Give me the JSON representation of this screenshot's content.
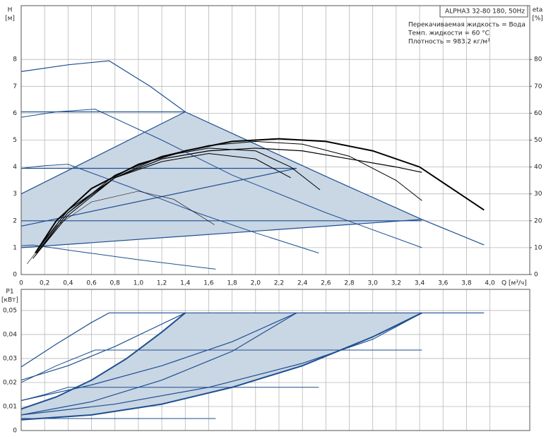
{
  "chart_data": [
    {
      "type": "line",
      "y_label": "H",
      "y_unit": "[м]",
      "y2_label": "eta",
      "y2_unit": "[%]",
      "x_label": "Q [м³/ч]",
      "annotations": [
        "ALPHA3 32-80 180, 50Hz",
        "Перекачиваемая жидкость = Вода",
        "Темп. жидкости = 60 °C",
        "Плотность = 983.2 кг/м³"
      ],
      "xlim": [
        0,
        4.34
      ],
      "ylim": [
        0,
        10
      ],
      "y2lim": [
        0,
        100
      ],
      "grid": true,
      "xticks": [
        {
          "value": 0,
          "label": "0"
        },
        {
          "value": 0.2,
          "label": "0,2"
        },
        {
          "value": 0.4,
          "label": "0,4"
        },
        {
          "value": 0.6,
          "label": "0,6"
        },
        {
          "value": 0.8,
          "label": "0,8"
        },
        {
          "value": 1.0,
          "label": "1,0"
        },
        {
          "value": 1.2,
          "label": "1,2"
        },
        {
          "value": 1.4,
          "label": "1,4"
        },
        {
          "value": 1.6,
          "label": "1,6"
        },
        {
          "value": 1.8,
          "label": "1,8"
        },
        {
          "value": 2.0,
          "label": "2,0"
        },
        {
          "value": 2.2,
          "label": "2,2"
        },
        {
          "value": 2.4,
          "label": "2,4"
        },
        {
          "value": 2.6,
          "label": "2,6"
        },
        {
          "value": 2.8,
          "label": "2,8"
        },
        {
          "value": 3.0,
          "label": "3,0"
        },
        {
          "value": 3.2,
          "label": "3,2"
        },
        {
          "value": 3.4,
          "label": "3,4"
        },
        {
          "value": 3.6,
          "label": "3,6"
        },
        {
          "value": 3.8,
          "label": "3,8"
        },
        {
          "value": 4.0,
          "label": "4,0"
        }
      ],
      "yticks": [
        0,
        1,
        2,
        3,
        4,
        5,
        6,
        7,
        8
      ],
      "y2ticks": [
        0,
        10,
        20,
        30,
        40,
        50,
        60,
        70,
        80
      ],
      "series": [
        {
          "fill": "#c9d6e4",
          "x": [
            0,
            0,
            1.4,
            2.0,
            2.6,
            3.42,
            0
          ],
          "values": [
            1.0,
            3.0,
            6.05,
            4.85,
            3.65,
            2.05,
            1.0
          ]
        },
        {
          "color": "#1d4f91",
          "width": 1.2,
          "x": [
            0,
            0.4,
            0.75,
            1.1,
            1.4,
            2.0,
            2.6,
            3.42,
            3.95
          ],
          "values": [
            7.55,
            7.8,
            7.95,
            7.0,
            6.05,
            4.85,
            3.65,
            2.05,
            1.1
          ]
        },
        {
          "color": "#1d4f91",
          "width": 1,
          "x": [
            0,
            0.3,
            0.63,
            1.2,
            1.8,
            2.6,
            3.42
          ],
          "values": [
            5.85,
            6.05,
            6.15,
            5.0,
            3.7,
            2.3,
            1.0
          ]
        },
        {
          "color": "#1d4f91",
          "width": 1,
          "x": [
            0,
            0.2,
            0.4,
            0.9,
            1.5,
            2.0,
            2.54
          ],
          "values": [
            3.95,
            4.05,
            4.1,
            3.3,
            2.3,
            1.55,
            0.8
          ]
        },
        {
          "color": "#1d4f91",
          "width": 1,
          "x": [
            0,
            0.1,
            0.5,
            1.0,
            1.66
          ],
          "values": [
            1.07,
            1.1,
            0.85,
            0.55,
            0.2
          ]
        },
        {
          "color": "#1d4f91",
          "width": 1.2,
          "x": [
            0,
            1.4
          ],
          "values": [
            6.05,
            6.05
          ]
        },
        {
          "color": "#1d4f91",
          "width": 1.2,
          "x": [
            0,
            2.35
          ],
          "values": [
            3.95,
            3.95
          ]
        },
        {
          "color": "#1d4f91",
          "width": 1.2,
          "x": [
            0,
            3.42
          ],
          "values": [
            2.0,
            2.0
          ]
        },
        {
          "color": "#1d4f91",
          "width": 1.2,
          "x": [
            0,
            1.4
          ],
          "values": [
            3.0,
            6.05
          ]
        },
        {
          "color": "#1d4f91",
          "width": 1.2,
          "x": [
            0,
            2.35
          ],
          "values": [
            1.8,
            3.95
          ]
        },
        {
          "color": "#1d4f91",
          "width": 1.2,
          "x": [
            0,
            3.42
          ],
          "values": [
            1.0,
            2.05
          ]
        },
        {
          "color": "#000000",
          "width": 2,
          "axis": "y2",
          "x": [
            0.12,
            0.3,
            0.6,
            1.0,
            1.4,
            1.8,
            2.2,
            2.6,
            3.0,
            3.4,
            3.95
          ],
          "values": [
            8,
            20,
            32,
            41,
            46,
            49.5,
            50.5,
            49.5,
            46,
            40,
            24
          ]
        },
        {
          "color": "#000000",
          "width": 1.2,
          "axis": "y2",
          "x": [
            0.15,
            0.4,
            0.8,
            1.2,
            1.6,
            2.0,
            2.4,
            2.8,
            3.2,
            3.42
          ],
          "values": [
            10,
            24,
            36,
            43,
            46,
            47,
            46,
            43,
            40,
            38
          ]
        },
        {
          "color": "#000000",
          "width": 1,
          "axis": "y2",
          "x": [
            0.13,
            0.4,
            0.8,
            1.2,
            1.6,
            2.0,
            2.4,
            2.8,
            3.2,
            3.42
          ],
          "values": [
            8,
            23,
            36,
            44,
            48,
            49.5,
            48.5,
            44,
            35,
            27.5
          ]
        },
        {
          "color": "#000000",
          "width": 1,
          "axis": "y2",
          "x": [
            0.12,
            0.4,
            0.8,
            1.2,
            1.6,
            2.0,
            2.3,
            2.55
          ],
          "values": [
            7,
            23,
            37,
            44,
            47,
            46,
            40,
            31.5
          ]
        },
        {
          "color": "#000000",
          "width": 1,
          "axis": "y2",
          "x": [
            0.1,
            0.4,
            0.8,
            1.2,
            1.6,
            2.0,
            2.3
          ],
          "values": [
            6,
            22,
            36,
            42,
            45,
            43,
            36
          ]
        },
        {
          "color": "#000000",
          "width": 0.6,
          "axis": "y2",
          "x": [
            0.05,
            0.3,
            0.6,
            1.0,
            1.3,
            1.65
          ],
          "values": [
            4,
            18,
            27,
            31,
            28,
            18.5
          ]
        }
      ]
    },
    {
      "type": "line",
      "y_label": "P1",
      "y_unit": "[кВт]",
      "xlim": [
        0,
        4.34
      ],
      "ylim": [
        0,
        0.0588
      ],
      "grid": true,
      "xticks": [
        0,
        0.2,
        0.4,
        0.6,
        0.8,
        1.0,
        1.2,
        1.4,
        1.6,
        1.8,
        2.0,
        2.2,
        2.4,
        2.6,
        2.8,
        3.0,
        3.2,
        3.4,
        3.6,
        3.8,
        4.0
      ],
      "yticks": [
        0,
        {
          "value": 0.01,
          "label": "0,01"
        },
        {
          "value": 0.02,
          "label": "0,02"
        },
        {
          "value": 0.03,
          "label": "0,03"
        },
        {
          "value": 0.04,
          "label": "0,04"
        },
        {
          "value": 0.05,
          "label": "0,05"
        }
      ],
      "series": [
        {
          "fill": "#c9d6e4",
          "x": [
            0,
            0.3,
            0.6,
            0.9,
            1.2,
            1.4,
            3.42,
            3.0,
            2.4,
            1.8,
            1.2,
            0.6,
            0
          ],
          "values": [
            0.009,
            0.014,
            0.021,
            0.03,
            0.041,
            0.049,
            0.049,
            0.039,
            0.027,
            0.018,
            0.011,
            0.0065,
            0.0045
          ]
        },
        {
          "color": "#1d4f91",
          "width": 1.2,
          "x": [
            0,
            0.3,
            0.6,
            0.75,
            3.95
          ],
          "values": [
            0.0265,
            0.036,
            0.045,
            0.049,
            0.049
          ]
        },
        {
          "color": "#1d4f91",
          "width": 1,
          "x": [
            0,
            0.3,
            0.63,
            3.42
          ],
          "values": [
            0.02,
            0.027,
            0.0335,
            0.0335
          ]
        },
        {
          "color": "#1d4f91",
          "width": 1,
          "x": [
            0,
            0.2,
            0.4,
            2.54
          ],
          "values": [
            0.0125,
            0.015,
            0.018,
            0.018
          ]
        },
        {
          "color": "#1d4f91",
          "width": 1,
          "x": [
            0,
            1.66
          ],
          "values": [
            0.005,
            0.005
          ]
        },
        {
          "color": "#1d4f91",
          "width": 1.2,
          "x": [
            0,
            0.4,
            0.8,
            1.1,
            1.4
          ],
          "values": [
            0.021,
            0.027,
            0.035,
            0.042,
            0.049
          ]
        },
        {
          "color": "#1d4f91",
          "width": 1.2,
          "x": [
            0,
            0.6,
            1.2,
            1.8,
            2.35
          ],
          "values": [
            0.0125,
            0.019,
            0.027,
            0.037,
            0.049
          ]
        },
        {
          "color": "#1d4f91",
          "width": 1.2,
          "x": [
            0,
            0.8,
            1.6,
            2.4,
            3.0,
            3.42
          ],
          "values": [
            0.0065,
            0.011,
            0.018,
            0.028,
            0.038,
            0.049
          ]
        },
        {
          "color": "#1d4f91",
          "width": 2,
          "x": [
            0,
            0.3,
            0.6,
            0.9,
            1.2,
            1.4
          ],
          "values": [
            0.009,
            0.014,
            0.021,
            0.03,
            0.041,
            0.049
          ]
        },
        {
          "color": "#1d4f91",
          "width": 1.2,
          "x": [
            0,
            0.6,
            1.2,
            1.8,
            2.35
          ],
          "values": [
            0.0065,
            0.012,
            0.021,
            0.033,
            0.049
          ]
        },
        {
          "color": "#1d4f91",
          "width": 2,
          "x": [
            0,
            0.6,
            1.2,
            1.8,
            2.4,
            3.0,
            3.42
          ],
          "values": [
            0.0045,
            0.0065,
            0.011,
            0.018,
            0.027,
            0.039,
            0.049
          ]
        }
      ]
    }
  ]
}
